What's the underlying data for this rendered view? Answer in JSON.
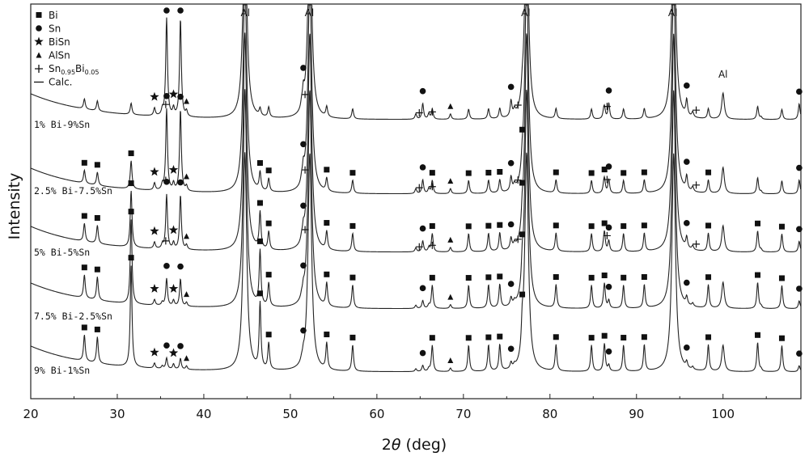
{
  "chart_data": {
    "type": "line",
    "xlabel_prefix": "2",
    "xlabel_symbol": "θ",
    "xlabel_suffix": " (deg)",
    "ylabel": "Intensity",
    "xlim": [
      20,
      109
    ],
    "xticks": [
      20,
      30,
      40,
      50,
      60,
      70,
      80,
      90,
      100
    ],
    "grid": false,
    "legend_placement": "top-left",
    "legend": [
      {
        "symbol": "square",
        "label": "Bi"
      },
      {
        "symbol": "circle",
        "label": "Sn"
      },
      {
        "symbol": "star",
        "label": "BiSn"
      },
      {
        "symbol": "triangle",
        "label": "AlSn"
      },
      {
        "symbol": "plus",
        "label": "Sn",
        "sub1": "0.95",
        "mid": "Bi",
        "sub2": "0.05"
      },
      {
        "symbol": "line",
        "label": "Calc."
      }
    ],
    "al_labels": [
      {
        "x": 44.8,
        "label": "Al"
      },
      {
        "x": 52.2,
        "label": "Al"
      },
      {
        "x": 77.2,
        "label": "Al"
      },
      {
        "x": 94.2,
        "label": "Al"
      },
      {
        "x": 100.0,
        "label": "Al"
      }
    ],
    "series": [
      {
        "name": "1% Bi-9%Sn",
        "rel_y": 1.0
      },
      {
        "name": "2.5% Bi-7.5%Sn",
        "rel_y": 0.78
      },
      {
        "name": "5% Bi-5%Sn",
        "rel_y": 0.55
      },
      {
        "name": "7.5% Bi-2.5%Sn",
        "rel_y": 0.28
      },
      {
        "name": "9% Bi-1%Sn",
        "rel_y": 0.04
      }
    ],
    "common_peaks": [
      {
        "x": 44.75,
        "h": 6.0,
        "w": 0.25
      },
      {
        "x": 52.25,
        "h": 6.0,
        "w": 0.25
      },
      {
        "x": 77.3,
        "h": 6.0,
        "w": 0.25
      },
      {
        "x": 94.3,
        "h": 6.0,
        "w": 0.25
      },
      {
        "x": 100.0,
        "h": 0.72,
        "w": 0.18
      },
      {
        "x": 104.0,
        "h": 0.08,
        "w": 0.12
      },
      {
        "x": 104.4,
        "h": 0.06,
        "w": 0.12
      }
    ],
    "phase_peaks": {
      "Bi": [
        26.2,
        27.7,
        31.6,
        46.5,
        47.5,
        54.2,
        57.2,
        66.4,
        70.6,
        72.9,
        74.2,
        76.8,
        80.7,
        84.8,
        86.3,
        88.5,
        90.9,
        98.3,
        104.0,
        106.8
      ],
      "Sn": [
        35.7,
        37.3,
        51.5,
        65.3,
        75.5,
        86.8,
        95.8,
        108.8
      ],
      "BiSn": [
        34.3,
        36.5
      ],
      "AlSn": [
        38.0,
        68.5
      ],
      "Sn095Bi005": [
        35.2,
        51.3,
        64.5,
        66.0,
        75.9,
        86.2,
        96.5
      ]
    },
    "bi_fraction": [
      0.01,
      0.025,
      0.05,
      0.075,
      0.09
    ],
    "sn_fraction": [
      0.09,
      0.075,
      0.05,
      0.025,
      0.01
    ]
  }
}
